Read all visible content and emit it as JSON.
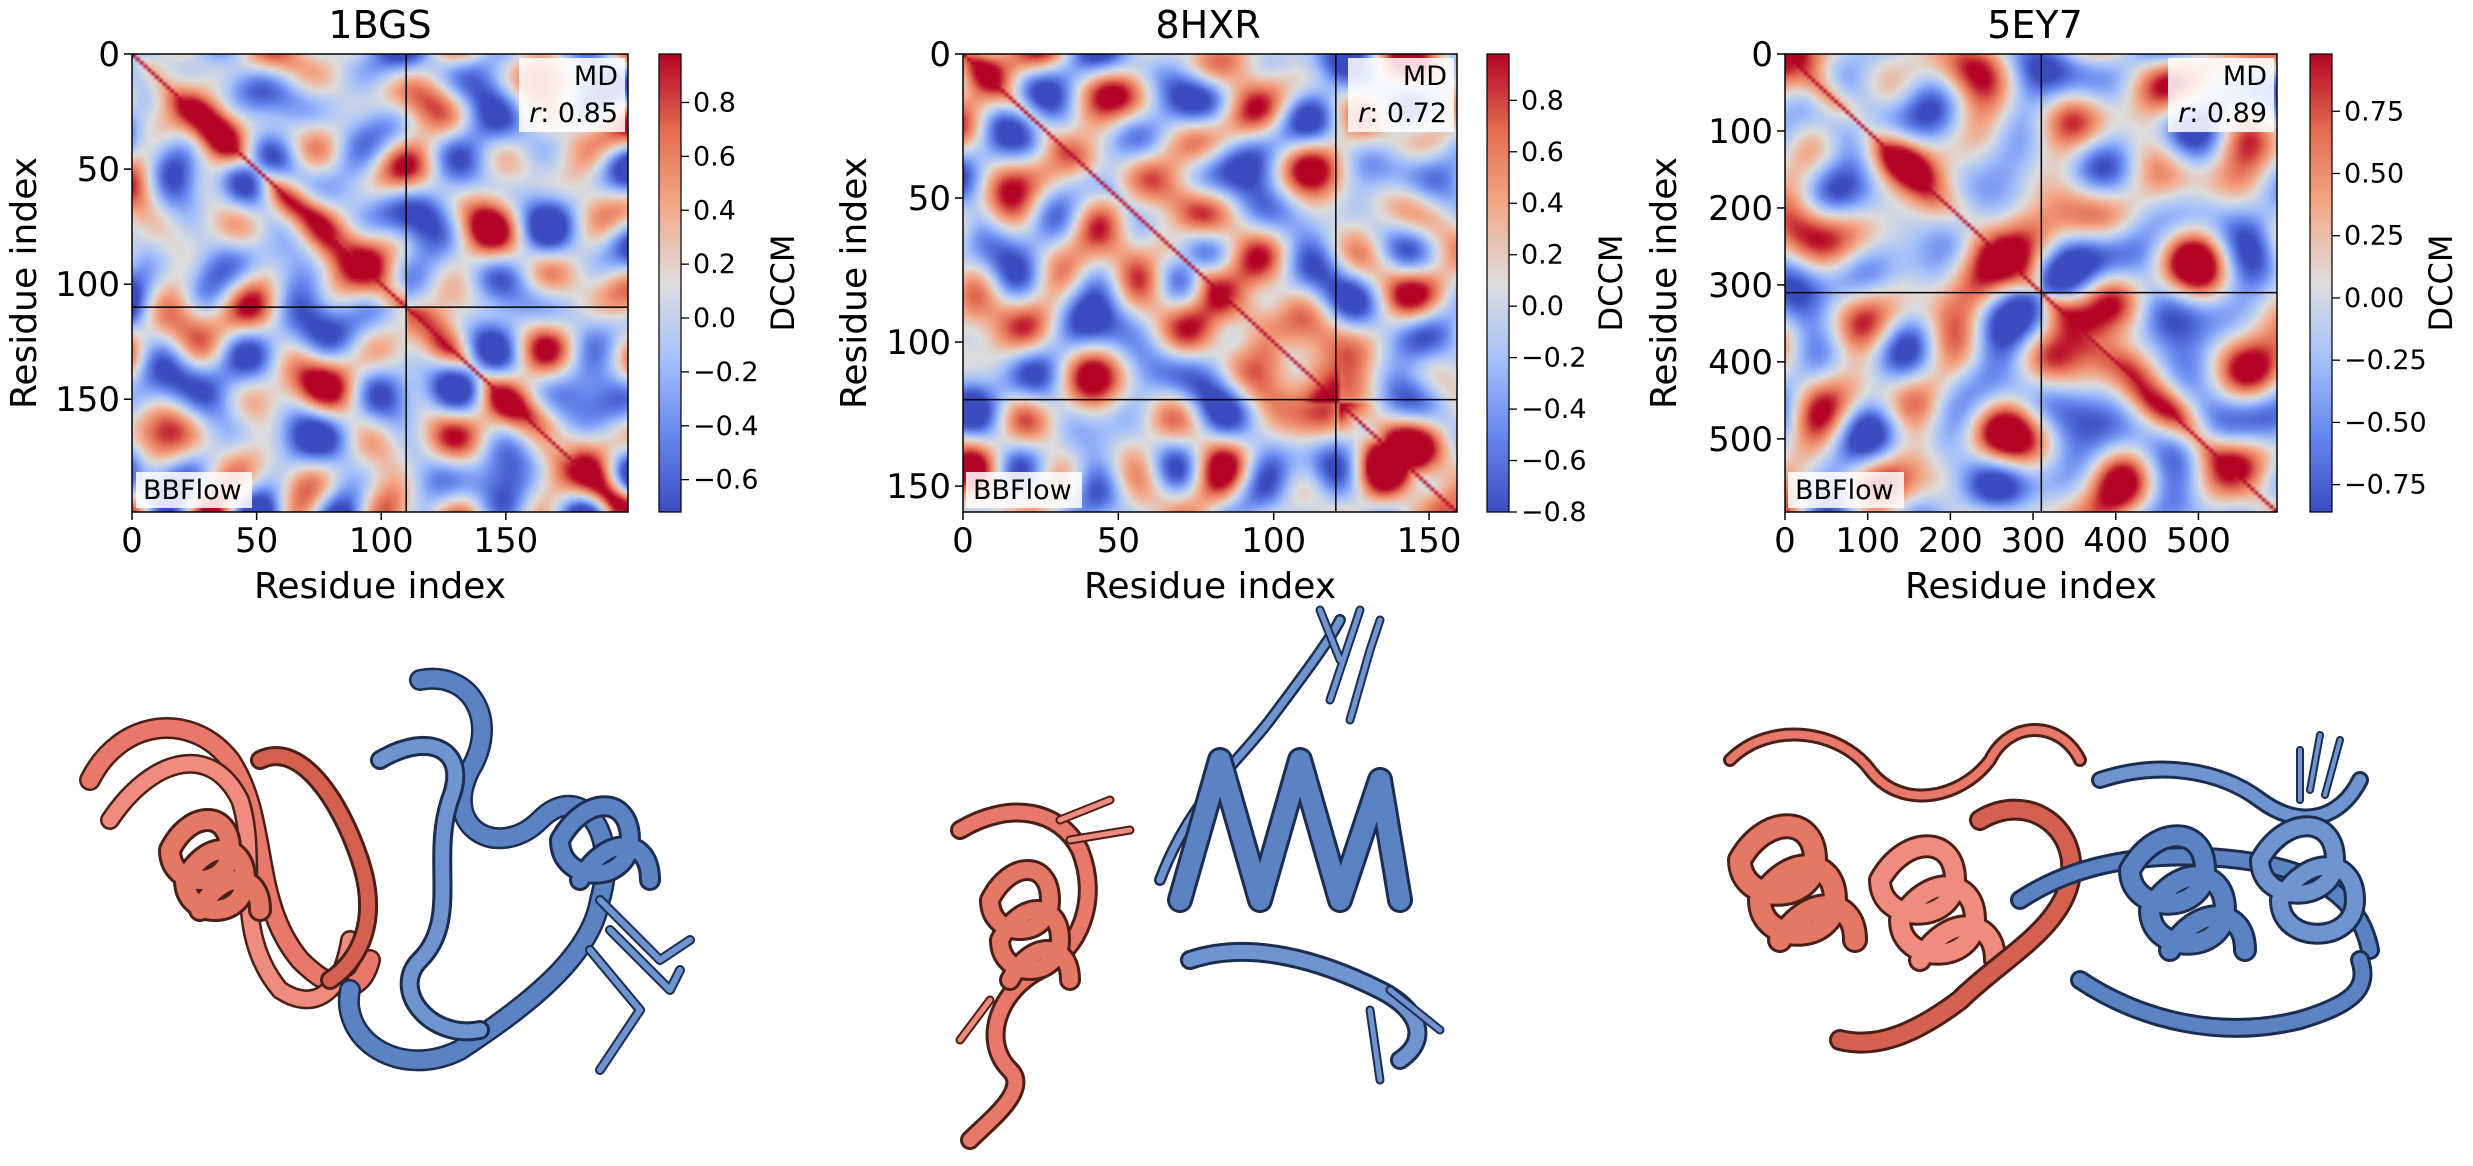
{
  "chart_data": [
    {
      "type": "heatmap",
      "title": "1BGS",
      "xlabel": "Residue index",
      "ylabel": "Residue index",
      "n_residues": 199,
      "chain_boundary": 110,
      "x_ticks": [
        0,
        50,
        100,
        150
      ],
      "y_ticks": [
        0,
        50,
        100,
        150
      ],
      "colorbar": {
        "label": "DCCM",
        "min": -0.72,
        "max": 0.98,
        "ticks": [
          0.8,
          0.6,
          0.4,
          0.2,
          0.0,
          -0.2,
          -0.4,
          -0.6
        ],
        "tick_labels": [
          "0.8",
          "0.6",
          "0.4",
          "0.2",
          "0.0",
          "−0.2",
          "−0.4",
          "−0.6"
        ]
      },
      "upper_label": "MD",
      "r_prefix": "r",
      "r_value": ": 0.85",
      "lower_label": "BBFlow",
      "seed": 11
    },
    {
      "type": "heatmap",
      "title": "8HXR",
      "xlabel": "Residue index",
      "ylabel": "Residue index",
      "n_residues": 159,
      "chain_boundary": 120,
      "x_ticks": [
        0,
        50,
        100,
        150
      ],
      "y_ticks": [
        0,
        50,
        100,
        150
      ],
      "colorbar": {
        "label": "DCCM",
        "min": -0.8,
        "max": 0.98,
        "ticks": [
          0.8,
          0.6,
          0.4,
          0.2,
          0.0,
          -0.2,
          -0.4,
          -0.6,
          -0.8
        ],
        "tick_labels": [
          "0.8",
          "0.6",
          "0.4",
          "0.2",
          "0.0",
          "−0.2",
          "−0.4",
          "−0.6",
          "−0.8"
        ]
      },
      "upper_label": "MD",
      "r_prefix": "r",
      "r_value": ": 0.72",
      "lower_label": "BBFlow",
      "seed": 23
    },
    {
      "type": "heatmap",
      "title": "5EY7",
      "xlabel": "Residue index",
      "ylabel": "Residue index",
      "n_residues": 595,
      "chain_boundary": 310,
      "x_ticks": [
        0,
        100,
        200,
        300,
        400,
        500
      ],
      "y_ticks": [
        0,
        100,
        200,
        300,
        400,
        500
      ],
      "colorbar": {
        "label": "DCCM",
        "min": -0.86,
        "max": 0.98,
        "ticks": [
          0.75,
          0.5,
          0.25,
          0.0,
          -0.25,
          -0.5,
          -0.75
        ],
        "tick_labels": [
          "0.75",
          "0.50",
          "0.25",
          "0.00",
          "−0.25",
          "−0.50",
          "−0.75"
        ]
      },
      "upper_label": "MD",
      "r_prefix": "r",
      "r_value": ": 0.89",
      "lower_label": "BBFlow",
      "seed": 37
    }
  ],
  "structures": [
    {
      "name": "1bgs-ensemble-render",
      "chain_a_color": "#e8796a",
      "chain_b_color": "#5b83c4"
    },
    {
      "name": "8hxr-ensemble-render",
      "chain_a_color": "#e8796a",
      "chain_b_color": "#5b83c4"
    },
    {
      "name": "5ey7-ensemble-render",
      "chain_a_color": "#e8796a",
      "chain_b_color": "#5b83c4"
    }
  ],
  "colors": {
    "cmap": [
      "#3b4cc0",
      "#6688ee",
      "#a4c0fb",
      "#dddddd",
      "#f4a888",
      "#e36d52",
      "#b40426"
    ],
    "chain_a": "#e8796a",
    "chain_a_dark": "#b0493c",
    "chain_b": "#5b83c4",
    "chain_b_dark": "#2d4f88"
  }
}
